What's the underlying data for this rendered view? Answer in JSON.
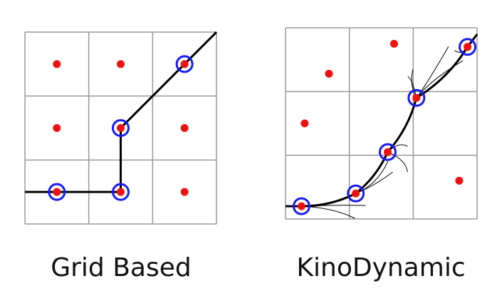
{
  "panels": [
    {
      "id": "grid-based",
      "caption": "Grid Based",
      "grid": {
        "rows": 3,
        "cols": 3
      },
      "cell_centers": [
        [
          0.5,
          0.5
        ],
        [
          1.5,
          0.5
        ],
        [
          2.5,
          0.5
        ],
        [
          0.5,
          1.5
        ],
        [
          1.5,
          1.5
        ],
        [
          2.5,
          1.5
        ],
        [
          0.5,
          2.5
        ],
        [
          1.5,
          2.5
        ],
        [
          2.5,
          2.5
        ]
      ],
      "path": [
        [
          0,
          2.5
        ],
        [
          1.5,
          2.5
        ],
        [
          1.5,
          1.5
        ],
        [
          2.5,
          0.5
        ],
        [
          3,
          0
        ]
      ],
      "path_nodes": [
        [
          0.5,
          2.5
        ],
        [
          1.5,
          2.5
        ],
        [
          1.5,
          1.5
        ],
        [
          2.5,
          0.5
        ]
      ]
    },
    {
      "id": "kinodynamic",
      "caption": "KinoDynamic",
      "grid": {
        "rows": 3,
        "cols": 3
      },
      "cell_samples": [
        [
          0.68,
          0.72
        ],
        [
          1.7,
          0.25
        ],
        [
          0.3,
          1.5
        ],
        [
          2.72,
          2.4
        ],
        [
          0.25,
          2.8
        ],
        [
          1.1,
          2.6
        ],
        [
          1.6,
          1.95
        ],
        [
          2.05,
          1.1
        ],
        [
          2.85,
          0.3
        ]
      ],
      "path_nodes": [
        [
          0.25,
          2.8
        ],
        [
          1.1,
          2.6
        ],
        [
          1.6,
          1.95
        ],
        [
          2.05,
          1.1
        ],
        [
          2.85,
          0.3
        ]
      ]
    }
  ],
  "colors": {
    "grid_line": "#999999",
    "sample_dot": "#ee1111",
    "node_ring": "#1a1aee",
    "path": "#000000"
  }
}
